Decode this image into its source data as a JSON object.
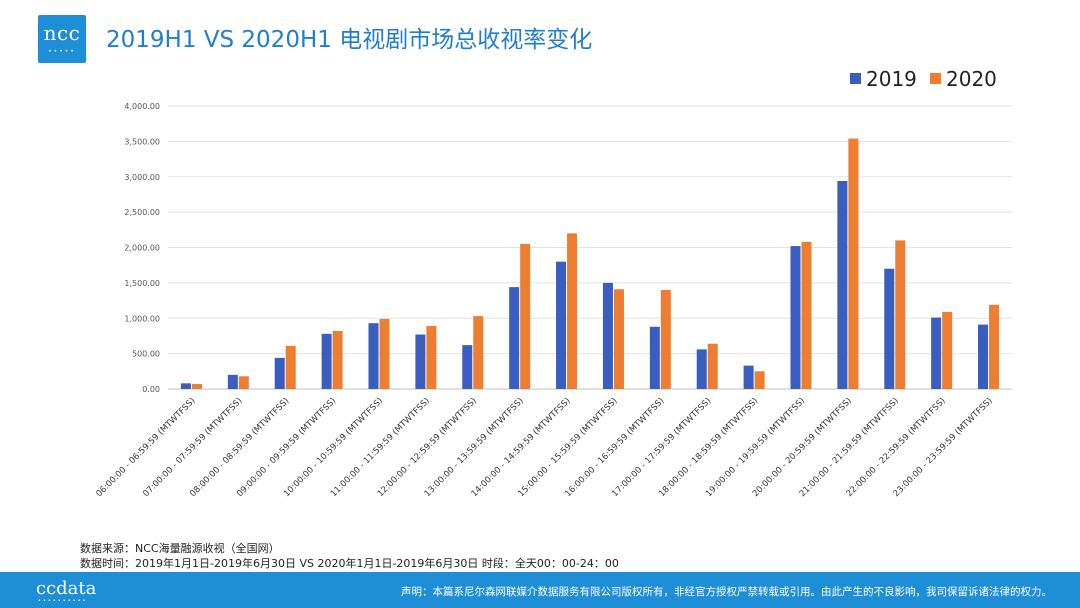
{
  "header": {
    "logo_text": "ncc",
    "title": "2019H1 VS 2020H1 电视剧市场总收视率变化"
  },
  "notes": {
    "source": "数据来源：NCC海量融源收视（全国网）",
    "period": "数据时间：2019年1月1日-2019年6月30日 VS 2020年1月1日-2019年6月30日 时段：全天00：00-24：00"
  },
  "footer": {
    "brand": "ccdata",
    "statement": "声明：本篇系尼尔森网联媒介数据服务有限公司版权所有，非经官方授权严禁转载或引用。由此产生的不良影响，我司保留诉诸法律的权力。"
  },
  "colors": {
    "s2019": "#3a5ebf",
    "s2020": "#ed7d31",
    "brand": "#1e8fd6"
  },
  "chart_data": {
    "type": "bar",
    "categories": [
      "06:00:00 - 06:59:59 (MTWTFSS)",
      "07:00:00 - 07:59:59 (MTWTFSS)",
      "08:00:00 - 08:59:59 (MTWTFSS)",
      "09:00:00 - 09:59:59 (MTWTFSS)",
      "10:00:00 - 10:59:59 (MTWTFSS)",
      "11:00:00 - 11:59:59 (MTWTFSS)",
      "12:00:00 - 12:59:59 (MTWTFSS)",
      "13:00:00 - 13:59:59 (MTWTFSS)",
      "14:00:00 - 14:59:59 (MTWTFSS)",
      "15:00:00 - 15:59:59 (MTWTFSS)",
      "16:00:00 - 16:59:59 (MTWTFSS)",
      "17:00:00 - 17:59:59 (MTWTFSS)",
      "18:00:00 - 18:59:59 (MTWTFSS)",
      "19:00:00 - 19:59:59 (MTWTFSS)",
      "20:00:00 - 20:59:59 (MTWTFSS)",
      "21:00:00 - 21:59:59 (MTWTFSS)",
      "22:00:00 - 22:59:59 (MTWTFSS)",
      "23:00:00 - 23:59:59 (MTWTFSS)"
    ],
    "series": [
      {
        "name": "2019",
        "values": [
          80,
          200,
          440,
          780,
          930,
          770,
          620,
          1440,
          1800,
          1500,
          880,
          560,
          330,
          2020,
          2940,
          1700,
          1010,
          910
        ]
      },
      {
        "name": "2020",
        "values": [
          70,
          180,
          610,
          820,
          990,
          890,
          1030,
          2050,
          2200,
          1410,
          1400,
          640,
          250,
          2080,
          3540,
          2100,
          1090,
          1190
        ]
      }
    ],
    "yticks": [
      "0.00",
      "500.00",
      "1,000.00",
      "1,500.00",
      "2,000.00",
      "2,500.00",
      "3,000.00",
      "3,500.00",
      "4,000.00"
    ],
    "ylim": [
      0,
      4000
    ],
    "grid": true,
    "legend_position": "top-right"
  }
}
